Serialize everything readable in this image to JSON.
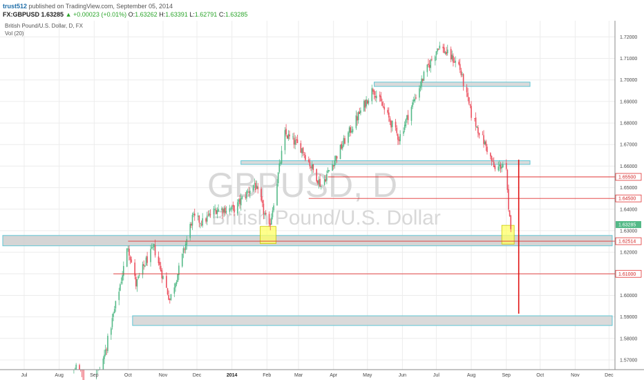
{
  "header": {
    "author": "trust512",
    "published": " published on TradingView.com, September 05, 2014",
    "symbol": "FX:GBPUSD",
    "last": "1.63285",
    "arrow": "▲",
    "change": "+0.00023 (+0.01%)",
    "o_label": "O:",
    "o_value": "1.63262",
    "h_label": "H:",
    "h_value": "1.63391",
    "l_label": "L:",
    "l_value": "1.62791",
    "c_label": "C:",
    "c_value": "1.63285"
  },
  "legend": {
    "instrument": "British Pound/U.S. Dollar, D, FX",
    "indicator": "Vol (20)"
  },
  "watermark": {
    "symbol": "GBPUSD, D",
    "name": "British Pound/U.S. Dollar"
  },
  "colors": {
    "up_candle": "#53b987",
    "down_candle": "#eb4d5c",
    "zone_fill": "#d3d3d3",
    "zone_border": "#5fc6d4",
    "highlight": "#ffff66",
    "level_line": "#e03030",
    "last_badge": "#53b987"
  },
  "chart_data": {
    "type": "candlestick",
    "y_ticks": [
      "1.57000",
      "1.58000",
      "1.59000",
      "1.60000",
      "1.61000",
      "1.62000",
      "1.63000",
      "1.64000",
      "1.65000",
      "1.66000",
      "1.67000",
      "1.68000",
      "1.69000",
      "1.70000",
      "1.71000",
      "1.72000"
    ],
    "x_ticks": [
      "Jul",
      "Aug",
      "Sep",
      "Oct",
      "Nov",
      "Dec",
      "2014",
      "Feb",
      "Mar",
      "Apr",
      "May",
      "Jun",
      "Jul",
      "Aug",
      "Sep",
      "Oct",
      "Nov",
      "Dec"
    ],
    "ylim": [
      1.5655,
      1.7275
    ],
    "last_price": "1.63285",
    "level_labels": [
      {
        "price": 1.655,
        "text": "1.65500"
      },
      {
        "price": 1.645,
        "text": "1.64500"
      },
      {
        "price": 1.62514,
        "text": "1.62514"
      },
      {
        "price": 1.61,
        "text": "1.61000"
      }
    ],
    "anchors": [
      {
        "d": "2013-07-01",
        "p": 1.505
      },
      {
        "d": "2013-07-06",
        "p": 1.516
      },
      {
        "d": "2013-07-18",
        "p": 1.531
      },
      {
        "d": "2013-08-02",
        "p": 1.527
      },
      {
        "d": "2013-08-16",
        "p": 1.567
      },
      {
        "d": "2013-08-28",
        "p": 1.55
      },
      {
        "d": "2013-09-10",
        "p": 1.572
      },
      {
        "d": "2013-09-24",
        "p": 1.605
      },
      {
        "d": "2013-10-01",
        "p": 1.623
      },
      {
        "d": "2013-10-08",
        "p": 1.605
      },
      {
        "d": "2013-10-17",
        "p": 1.616
      },
      {
        "d": "2013-10-24",
        "p": 1.622
      },
      {
        "d": "2013-11-07",
        "p": 1.598
      },
      {
        "d": "2013-11-15",
        "p": 1.612
      },
      {
        "d": "2013-11-27",
        "p": 1.636
      },
      {
        "d": "2013-12-06",
        "p": 1.634
      },
      {
        "d": "2013-12-18",
        "p": 1.64
      },
      {
        "d": "2014-01-03",
        "p": 1.64
      },
      {
        "d": "2014-01-21",
        "p": 1.652
      },
      {
        "d": "2014-02-03",
        "p": 1.631
      },
      {
        "d": "2014-02-17",
        "p": 1.675
      },
      {
        "d": "2014-03-04",
        "p": 1.668
      },
      {
        "d": "2014-03-21",
        "p": 1.651
      },
      {
        "d": "2014-04-10",
        "p": 1.671
      },
      {
        "d": "2014-05-06",
        "p": 1.696
      },
      {
        "d": "2014-05-29",
        "p": 1.673
      },
      {
        "d": "2014-06-20",
        "p": 1.702
      },
      {
        "d": "2014-07-03",
        "p": 1.716
      },
      {
        "d": "2014-07-21",
        "p": 1.707
      },
      {
        "d": "2014-08-01",
        "p": 1.684
      },
      {
        "d": "2014-08-15",
        "p": 1.668
      },
      {
        "d": "2014-08-22",
        "p": 1.658
      },
      {
        "d": "2014-08-29",
        "p": 1.661
      },
      {
        "d": "2014-09-01",
        "p": 1.657
      },
      {
        "d": "2014-09-03",
        "p": 1.638
      },
      {
        "d": "2014-09-05",
        "p": 1.6328
      }
    ],
    "zones": [
      {
        "from": "2013-06-15",
        "to": "2014-12-31",
        "top": 1.6278,
        "bottom": 1.623,
        "extend": "full"
      },
      {
        "from": "2014-01-09",
        "to": "2014-09-22",
        "top": 1.6625,
        "bottom": 1.6608
      },
      {
        "from": "2014-05-07",
        "to": "2014-09-22",
        "top": 1.699,
        "bottom": 1.697
      },
      {
        "from": "2013-10-05",
        "to": "2014-12-31",
        "top": 1.5905,
        "bottom": 1.586
      }
    ],
    "highlights": [
      {
        "from": "2014-01-26",
        "to": "2014-02-09",
        "top": 1.632,
        "bottom": 1.624
      },
      {
        "from": "2014-08-28",
        "to": "2014-09-08",
        "top": 1.6325,
        "bottom": 1.6238
      }
    ],
    "levels": [
      {
        "from": "2014-03-27",
        "price": 1.655
      },
      {
        "from": "2014-03-10",
        "price": 1.645
      },
      {
        "from": "2013-10-01",
        "price": 1.62514
      },
      {
        "from": "2013-09-18",
        "price": 1.61
      }
    ],
    "projection": {
      "date": "2014-09-12",
      "from": 1.663,
      "to": 1.5915
    }
  }
}
